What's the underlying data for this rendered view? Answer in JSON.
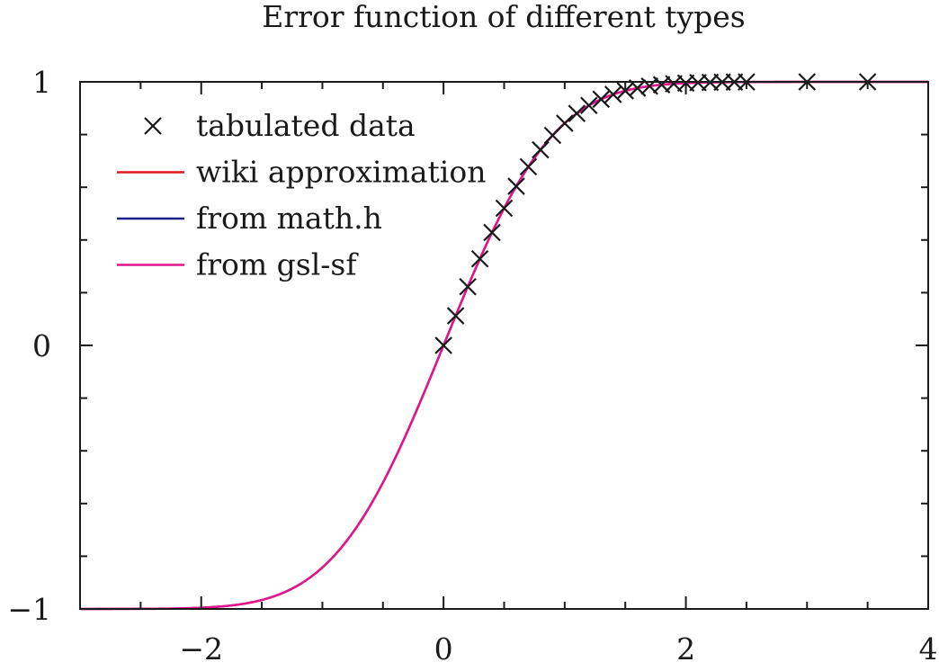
{
  "chart_data": {
    "type": "line",
    "title": "Error function of different types",
    "xlabel": "",
    "ylabel": "",
    "xlim": [
      -3,
      4
    ],
    "ylim": [
      -1,
      1
    ],
    "x_ticks": [
      {
        "value": -2,
        "label": "−2"
      },
      {
        "value": 0,
        "label": "0"
      },
      {
        "value": 2,
        "label": "2"
      },
      {
        "value": 4,
        "label": "4"
      }
    ],
    "y_ticks": [
      {
        "value": -1,
        "label": "−1"
      },
      {
        "value": 0,
        "label": "0"
      },
      {
        "value": 1,
        "label": "1"
      }
    ],
    "x_minor_ticks": [
      -2.5,
      -1.5,
      -1,
      -0.5,
      0.5,
      1,
      1.5,
      2.5,
      3,
      3.5
    ],
    "y_minor_ticks": [
      -0.8,
      -0.6,
      -0.4,
      -0.2,
      0.2,
      0.4,
      0.6,
      0.8
    ],
    "grid": false,
    "legend_position": "top-left",
    "series": [
      {
        "name": "tabulated data",
        "kind": "scatter",
        "marker": "cross",
        "color": "#1a1a1a",
        "x": [
          0,
          0.1,
          0.2,
          0.3,
          0.4,
          0.5,
          0.6,
          0.7,
          0.8,
          0.9,
          1.0,
          1.1,
          1.2,
          1.3,
          1.4,
          1.5,
          1.6,
          1.7,
          1.8,
          1.9,
          2.0,
          2.1,
          2.2,
          2.3,
          2.4,
          2.5,
          3.0,
          3.5
        ],
        "y": [
          0.0,
          0.1125,
          0.2227,
          0.3286,
          0.4284,
          0.5205,
          0.6039,
          0.6778,
          0.7421,
          0.7969,
          0.8427,
          0.8802,
          0.9103,
          0.934,
          0.9523,
          0.9661,
          0.9763,
          0.9838,
          0.9891,
          0.9928,
          0.9953,
          0.997,
          0.9981,
          0.9989,
          0.9993,
          0.9996,
          1.0,
          1.0
        ]
      },
      {
        "name": "wiki approximation",
        "kind": "line",
        "color": "#e0191c",
        "x": [
          -3,
          -2.75,
          -2.5,
          -2.25,
          -2,
          -1.75,
          -1.5,
          -1.25,
          -1,
          -0.75,
          -0.5,
          -0.25,
          0,
          0.25,
          0.5,
          0.75,
          1,
          1.25,
          1.5,
          1.75,
          2,
          2.25,
          2.5,
          2.75,
          3,
          3.25,
          3.5,
          3.75,
          4
        ],
        "y": [
          -1.0,
          -0.9999,
          -0.9996,
          -0.9985,
          -0.9953,
          -0.9867,
          -0.9661,
          -0.9229,
          -0.8427,
          -0.7112,
          -0.5205,
          -0.2763,
          0.0,
          0.2763,
          0.5205,
          0.7112,
          0.8427,
          0.9229,
          0.9661,
          0.9867,
          0.9953,
          0.9985,
          0.9996,
          0.9999,
          1.0,
          1.0,
          1.0,
          1.0,
          1.0
        ]
      },
      {
        "name": "from math.h",
        "kind": "line",
        "color": "#1f1f8c",
        "x": [
          -3,
          -2.75,
          -2.5,
          -2.25,
          -2,
          -1.75,
          -1.5,
          -1.25,
          -1,
          -0.75,
          -0.5,
          -0.25,
          0,
          0.25,
          0.5,
          0.75,
          1,
          1.25,
          1.5,
          1.75,
          2,
          2.25,
          2.5,
          2.75,
          3,
          3.25,
          3.5,
          3.75,
          4
        ],
        "y": [
          -1.0,
          -0.9999,
          -0.9996,
          -0.9985,
          -0.9953,
          -0.9867,
          -0.9661,
          -0.9229,
          -0.8427,
          -0.7112,
          -0.5205,
          -0.2763,
          0.0,
          0.2763,
          0.5205,
          0.7112,
          0.8427,
          0.9229,
          0.9661,
          0.9867,
          0.9953,
          0.9985,
          0.9996,
          0.9999,
          1.0,
          1.0,
          1.0,
          1.0,
          1.0
        ]
      },
      {
        "name": "from gsl-sf",
        "kind": "line",
        "color": "#e0158c",
        "x": [
          -3,
          -2.75,
          -2.5,
          -2.25,
          -2,
          -1.75,
          -1.5,
          -1.25,
          -1,
          -0.75,
          -0.5,
          -0.25,
          0,
          0.25,
          0.5,
          0.75,
          1,
          1.25,
          1.5,
          1.75,
          2,
          2.25,
          2.5,
          2.75,
          3,
          3.25,
          3.5,
          3.75,
          4
        ],
        "y": [
          -1.0,
          -0.9999,
          -0.9996,
          -0.9985,
          -0.9953,
          -0.9867,
          -0.9661,
          -0.9229,
          -0.8427,
          -0.7112,
          -0.5205,
          -0.2763,
          0.0,
          0.2763,
          0.5205,
          0.7112,
          0.8427,
          0.9229,
          0.9661,
          0.9867,
          0.9953,
          0.9985,
          0.9996,
          0.9999,
          1.0,
          1.0,
          1.0,
          1.0,
          1.0
        ]
      }
    ]
  }
}
